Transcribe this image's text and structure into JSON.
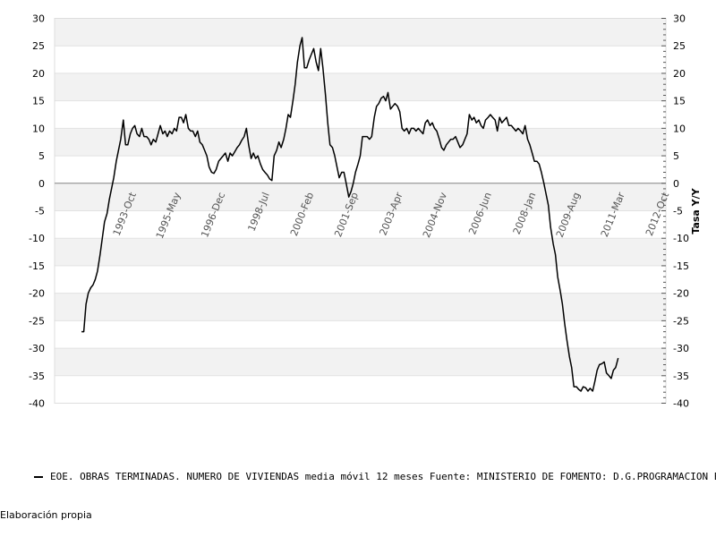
{
  "chart_data": {
    "type": "line",
    "y_tick_values": [
      30,
      25,
      20,
      15,
      10,
      5,
      0,
      -5,
      -10,
      -15,
      -20,
      -25,
      -30,
      -35,
      -40
    ],
    "ylim": [
      -40,
      30
    ],
    "xlim": [
      1991.0,
      2012.8
    ],
    "ylabel_right": "Tasa Y/Y",
    "grid": "horizontal bands",
    "x_ticks": [
      {
        "label": "1993-Oct",
        "x": 1993.75
      },
      {
        "label": "1995-May",
        "x": 1995.33
      },
      {
        "label": "1996-Dec",
        "x": 1996.92
      },
      {
        "label": "1998-Jul",
        "x": 1998.5
      },
      {
        "label": "2000-Feb",
        "x": 2000.08
      },
      {
        "label": "2001-Sep",
        "x": 2001.67
      },
      {
        "label": "2003-Apr",
        "x": 2003.25
      },
      {
        "label": "2004-Nov",
        "x": 2004.83
      },
      {
        "label": "2006-Jun",
        "x": 2006.42
      },
      {
        "label": "2008-Jan",
        "x": 2008.0
      },
      {
        "label": "2009-Aug",
        "x": 2009.58
      },
      {
        "label": "2011-Mar",
        "x": 2011.17
      },
      {
        "label": "2012-Oct",
        "x": 2012.75
      }
    ],
    "series": [
      {
        "name": "EOE. OBRAS TERMINADAS. NUMERO DE VIVIENDAS media móvil 12 meses",
        "color": "#000000",
        "points": [
          [
            1991.96,
            -27
          ],
          [
            1992.04,
            -27
          ],
          [
            1992.12,
            -22
          ],
          [
            1992.2,
            -20
          ],
          [
            1992.29,
            -19
          ],
          [
            1992.37,
            -18.5
          ],
          [
            1992.45,
            -17.5
          ],
          [
            1992.53,
            -16
          ],
          [
            1992.62,
            -13
          ],
          [
            1992.7,
            -10
          ],
          [
            1992.78,
            -7
          ],
          [
            1992.87,
            -5.5
          ],
          [
            1992.95,
            -3
          ],
          [
            1993.03,
            -1
          ],
          [
            1993.11,
            1
          ],
          [
            1993.2,
            4
          ],
          [
            1993.28,
            6
          ],
          [
            1993.36,
            8
          ],
          [
            1993.45,
            11.5
          ],
          [
            1993.53,
            7
          ],
          [
            1993.61,
            7
          ],
          [
            1993.7,
            9
          ],
          [
            1993.78,
            10
          ],
          [
            1993.86,
            10.5
          ],
          [
            1993.94,
            9
          ],
          [
            1994.03,
            8.5
          ],
          [
            1994.11,
            10
          ],
          [
            1994.19,
            8.5
          ],
          [
            1994.28,
            8.5
          ],
          [
            1994.36,
            8
          ],
          [
            1994.44,
            7
          ],
          [
            1994.52,
            8
          ],
          [
            1994.61,
            7.5
          ],
          [
            1994.69,
            9
          ],
          [
            1994.77,
            10.5
          ],
          [
            1994.86,
            9
          ],
          [
            1994.94,
            9.5
          ],
          [
            1995.02,
            8.5
          ],
          [
            1995.1,
            9.5
          ],
          [
            1995.19,
            9
          ],
          [
            1995.27,
            10
          ],
          [
            1995.35,
            9.5
          ],
          [
            1995.44,
            12
          ],
          [
            1995.52,
            12
          ],
          [
            1995.6,
            11
          ],
          [
            1995.68,
            12.5
          ],
          [
            1995.77,
            10
          ],
          [
            1995.85,
            9.5
          ],
          [
            1995.93,
            9.5
          ],
          [
            1996.02,
            8.5
          ],
          [
            1996.1,
            9.5
          ],
          [
            1996.18,
            7.5
          ],
          [
            1996.27,
            7
          ],
          [
            1996.35,
            6
          ],
          [
            1996.43,
            5
          ],
          [
            1996.51,
            3
          ],
          [
            1996.6,
            2
          ],
          [
            1996.68,
            1.8
          ],
          [
            1996.76,
            2.5
          ],
          [
            1996.85,
            4
          ],
          [
            1996.93,
            4.5
          ],
          [
            1997.01,
            5
          ],
          [
            1997.09,
            5.5
          ],
          [
            1997.18,
            4
          ],
          [
            1997.26,
            5.5
          ],
          [
            1997.34,
            5
          ],
          [
            1997.43,
            5.8
          ],
          [
            1997.51,
            6.5
          ],
          [
            1997.59,
            7
          ],
          [
            1997.67,
            7.8
          ],
          [
            1997.76,
            8.5
          ],
          [
            1997.84,
            10
          ],
          [
            1997.92,
            7
          ],
          [
            1998.01,
            4.5
          ],
          [
            1998.09,
            5.5
          ],
          [
            1998.17,
            4.5
          ],
          [
            1998.25,
            5
          ],
          [
            1998.34,
            3.5
          ],
          [
            1998.42,
            2.5
          ],
          [
            1998.5,
            2
          ],
          [
            1998.59,
            1.5
          ],
          [
            1998.67,
            0.8
          ],
          [
            1998.75,
            0.5
          ],
          [
            1998.83,
            5
          ],
          [
            1998.92,
            6
          ],
          [
            1999.0,
            7.5
          ],
          [
            1999.08,
            6.5
          ],
          [
            1999.17,
            8
          ],
          [
            1999.25,
            10
          ],
          [
            1999.33,
            12.5
          ],
          [
            1999.41,
            12
          ],
          [
            1999.5,
            15
          ],
          [
            1999.58,
            18
          ],
          [
            1999.66,
            22
          ],
          [
            1999.75,
            25
          ],
          [
            1999.83,
            26.5
          ],
          [
            1999.91,
            21
          ],
          [
            1999.99,
            21
          ],
          [
            2000.08,
            22.5
          ],
          [
            2000.16,
            23.5
          ],
          [
            2000.24,
            24.5
          ],
          [
            2000.33,
            22
          ],
          [
            2000.41,
            20.5
          ],
          [
            2000.49,
            24.5
          ],
          [
            2000.57,
            21
          ],
          [
            2000.66,
            16
          ],
          [
            2000.74,
            11
          ],
          [
            2000.82,
            7
          ],
          [
            2000.91,
            6.5
          ],
          [
            2000.99,
            5
          ],
          [
            2001.07,
            3
          ],
          [
            2001.15,
            1
          ],
          [
            2001.24,
            2
          ],
          [
            2001.32,
            2
          ],
          [
            2001.4,
            0
          ],
          [
            2001.49,
            -2.5
          ],
          [
            2001.57,
            -1.5
          ],
          [
            2001.65,
            0
          ],
          [
            2001.73,
            2
          ],
          [
            2001.82,
            3.5
          ],
          [
            2001.9,
            5
          ],
          [
            2001.98,
            8.5
          ],
          [
            2002.07,
            8.5
          ],
          [
            2002.15,
            8.5
          ],
          [
            2002.23,
            8
          ],
          [
            2002.31,
            8.5
          ],
          [
            2002.4,
            12
          ],
          [
            2002.48,
            14
          ],
          [
            2002.56,
            14.5
          ],
          [
            2002.65,
            15.5
          ],
          [
            2002.73,
            15.8
          ],
          [
            2002.81,
            15
          ],
          [
            2002.89,
            16.5
          ],
          [
            2002.98,
            13.5
          ],
          [
            2003.06,
            14
          ],
          [
            2003.14,
            14.5
          ],
          [
            2003.23,
            14
          ],
          [
            2003.31,
            13
          ],
          [
            2003.39,
            10
          ],
          [
            2003.47,
            9.5
          ],
          [
            2003.56,
            10
          ],
          [
            2003.64,
            9
          ],
          [
            2003.72,
            10
          ],
          [
            2003.81,
            10
          ],
          [
            2003.89,
            9.5
          ],
          [
            2003.97,
            10
          ],
          [
            2004.05,
            9.5
          ],
          [
            2004.14,
            9
          ],
          [
            2004.22,
            11
          ],
          [
            2004.3,
            11.5
          ],
          [
            2004.39,
            10.5
          ],
          [
            2004.47,
            11
          ],
          [
            2004.55,
            10
          ],
          [
            2004.63,
            9.5
          ],
          [
            2004.72,
            8
          ],
          [
            2004.8,
            6.5
          ],
          [
            2004.88,
            6
          ],
          [
            2004.97,
            7
          ],
          [
            2005.05,
            7.5
          ],
          [
            2005.13,
            8
          ],
          [
            2005.21,
            8
          ],
          [
            2005.3,
            8.5
          ],
          [
            2005.38,
            7.5
          ],
          [
            2005.46,
            6.5
          ],
          [
            2005.55,
            7
          ],
          [
            2005.63,
            8
          ],
          [
            2005.71,
            9
          ],
          [
            2005.79,
            12.5
          ],
          [
            2005.88,
            11.5
          ],
          [
            2005.96,
            12
          ],
          [
            2006.04,
            11
          ],
          [
            2006.13,
            11.5
          ],
          [
            2006.21,
            10.5
          ],
          [
            2006.29,
            10
          ],
          [
            2006.37,
            11.5
          ],
          [
            2006.46,
            12
          ],
          [
            2006.54,
            12.5
          ],
          [
            2006.62,
            12
          ],
          [
            2006.71,
            11.5
          ],
          [
            2006.79,
            9.5
          ],
          [
            2006.87,
            12
          ],
          [
            2006.95,
            11
          ],
          [
            2007.04,
            11.5
          ],
          [
            2007.12,
            12
          ],
          [
            2007.2,
            10.5
          ],
          [
            2007.29,
            10.5
          ],
          [
            2007.37,
            10
          ],
          [
            2007.45,
            9.5
          ],
          [
            2007.53,
            10
          ],
          [
            2007.62,
            9.5
          ],
          [
            2007.7,
            9
          ],
          [
            2007.78,
            10.5
          ],
          [
            2007.87,
            8
          ],
          [
            2007.95,
            7
          ],
          [
            2008.03,
            5.5
          ],
          [
            2008.11,
            4
          ],
          [
            2008.2,
            4
          ],
          [
            2008.28,
            3.5
          ],
          [
            2008.36,
            2
          ],
          [
            2008.45,
            0
          ],
          [
            2008.53,
            -2
          ],
          [
            2008.61,
            -4
          ],
          [
            2008.69,
            -8
          ],
          [
            2008.78,
            -11
          ],
          [
            2008.86,
            -13
          ],
          [
            2008.94,
            -17
          ],
          [
            2009.03,
            -19.5
          ],
          [
            2009.11,
            -22
          ],
          [
            2009.19,
            -25.5
          ],
          [
            2009.27,
            -28.5
          ],
          [
            2009.36,
            -31.5
          ],
          [
            2009.44,
            -33.5
          ],
          [
            2009.52,
            -37
          ],
          [
            2009.61,
            -37
          ],
          [
            2009.69,
            -37.5
          ],
          [
            2009.77,
            -37.8
          ],
          [
            2009.85,
            -37
          ],
          [
            2009.94,
            -37.2
          ],
          [
            2010.02,
            -37.8
          ],
          [
            2010.1,
            -37.3
          ],
          [
            2010.19,
            -37.8
          ],
          [
            2010.27,
            -36
          ],
          [
            2010.35,
            -34
          ],
          [
            2010.43,
            -33
          ],
          [
            2010.52,
            -32.8
          ],
          [
            2010.6,
            -32.5
          ],
          [
            2010.68,
            -34.5
          ],
          [
            2010.77,
            -35
          ],
          [
            2010.85,
            -35.5
          ],
          [
            2010.93,
            -34
          ],
          [
            2011.01,
            -33.5
          ],
          [
            2011.1,
            -31.8
          ]
        ]
      }
    ]
  },
  "legend": {
    "text": "EOE. OBRAS TERMINADAS. NUMERO DE VIVIENDAS media móvil 12 meses  Fuente: MINISTERIO DE FOMENTO: D.G.PROGRAMACION ECONOMICA"
  },
  "footer": {
    "text": "Elaboración propia"
  }
}
